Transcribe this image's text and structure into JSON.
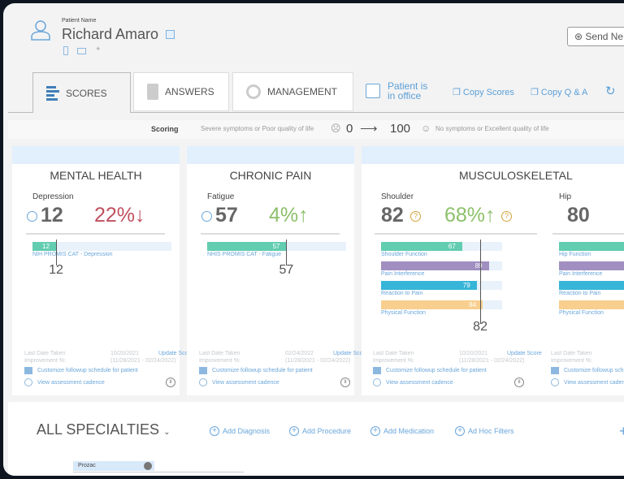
{
  "patient": {
    "label": "Patient Name",
    "name": "Richard Amaro"
  },
  "header": {
    "send_label": "Send Ne"
  },
  "tabs": [
    {
      "label": "SCORES",
      "active": true
    },
    {
      "label": "ANSWERS"
    },
    {
      "label": "MANAGEMENT"
    }
  ],
  "actions": {
    "office_line1": "Patient is",
    "office_line2": "in office",
    "copy_scores": "Copy Scores",
    "copy_qa": "Copy Q & A"
  },
  "scoring": {
    "label": "Scoring",
    "low_text": "Severe symptoms or Poor quality of life",
    "low": "0",
    "high": "100",
    "high_text": "No symptoms or Excellent quality of life"
  },
  "cards": [
    {
      "title": "MENTAL HEALTH",
      "sub": "Depression",
      "score": "12",
      "pct": "22%↓",
      "pct_color": "#c0505f",
      "bars": [
        {
          "value": 12,
          "label": "NIH PROMIS CAT - Depression",
          "color": "#62cdb0"
        }
      ],
      "marker": "12",
      "last_label": "Last Date Taken",
      "last_date": "10/20/2021",
      "update": "Update Score",
      "imp_label": "Improvement %:",
      "imp_range": "(11/28/2021 - 02/24/2022)",
      "customize": "Customize followup schedule for patient",
      "cadence": "View assessment cadence"
    },
    {
      "title": "CHRONIC PAIN",
      "sub": "Fatigue",
      "score": "57",
      "pct": "4%↑",
      "pct_color": "#8cc06a",
      "bars": [
        {
          "value": 57,
          "label": "NHIS PROMIS CAT - Fatigue",
          "color": "#62cdb0"
        }
      ],
      "marker": "57",
      "last_label": "Last Date Taken",
      "last_date": "02/24/2022",
      "update": "Update Score",
      "imp_label": "Improvement %:",
      "imp_range": "(11/28/2021 - 02/24/2022)",
      "customize": "Customize followup schedule for patient",
      "cadence": "View assessment cadence"
    },
    {
      "title": "MUSCULOSKELETAL",
      "cols": [
        {
          "sub": "Shoulder",
          "score": "82",
          "pct": "68%↑",
          "pct_color": "#8cc06a",
          "marker": "82",
          "bars": [
            {
              "value": 67,
              "label": "Shoulder Function",
              "color": "#62cdb0"
            },
            {
              "value": 89,
              "label": "Pain Interference",
              "color": "#a08fc0"
            },
            {
              "value": 79,
              "label": "Reaction to Pain",
              "color": "#37b5d8"
            },
            {
              "value": 84,
              "label": "Physical Function",
              "color": "#f8cf8e"
            }
          ],
          "last_label": "Last Date Taken",
          "last_date": "10/20/2021",
          "update": "Update Score",
          "imp_label": "Improvement %:",
          "imp_range": "(11/28/2021 - 02/24/2022)",
          "customize": "Customize followup schedule for patient",
          "cadence": "View assessment cadence"
        },
        {
          "sub": "Hip",
          "score": "80",
          "bars": [
            {
              "label": "Hip Function",
              "color": "#62cdb0"
            },
            {
              "label": "Pain Interference",
              "color": "#a08fc0"
            },
            {
              "label": "Reaction to Pain",
              "color": "#37b5d8"
            },
            {
              "label": "Physical Function",
              "color": "#f8cf8e"
            }
          ],
          "last_label": "Last Date Taken",
          "imp_label": "Improvement %:",
          "customize": "Customize followup sch",
          "cadence": "View assessment caden"
        }
      ]
    }
  ],
  "specialties": {
    "title": "ALL SPECIALTIES",
    "actions": [
      "Add Diagnosis",
      "Add Procedure",
      "Add Medication",
      "Ad Hoc Filters"
    ],
    "med_tag": "Prozac"
  }
}
